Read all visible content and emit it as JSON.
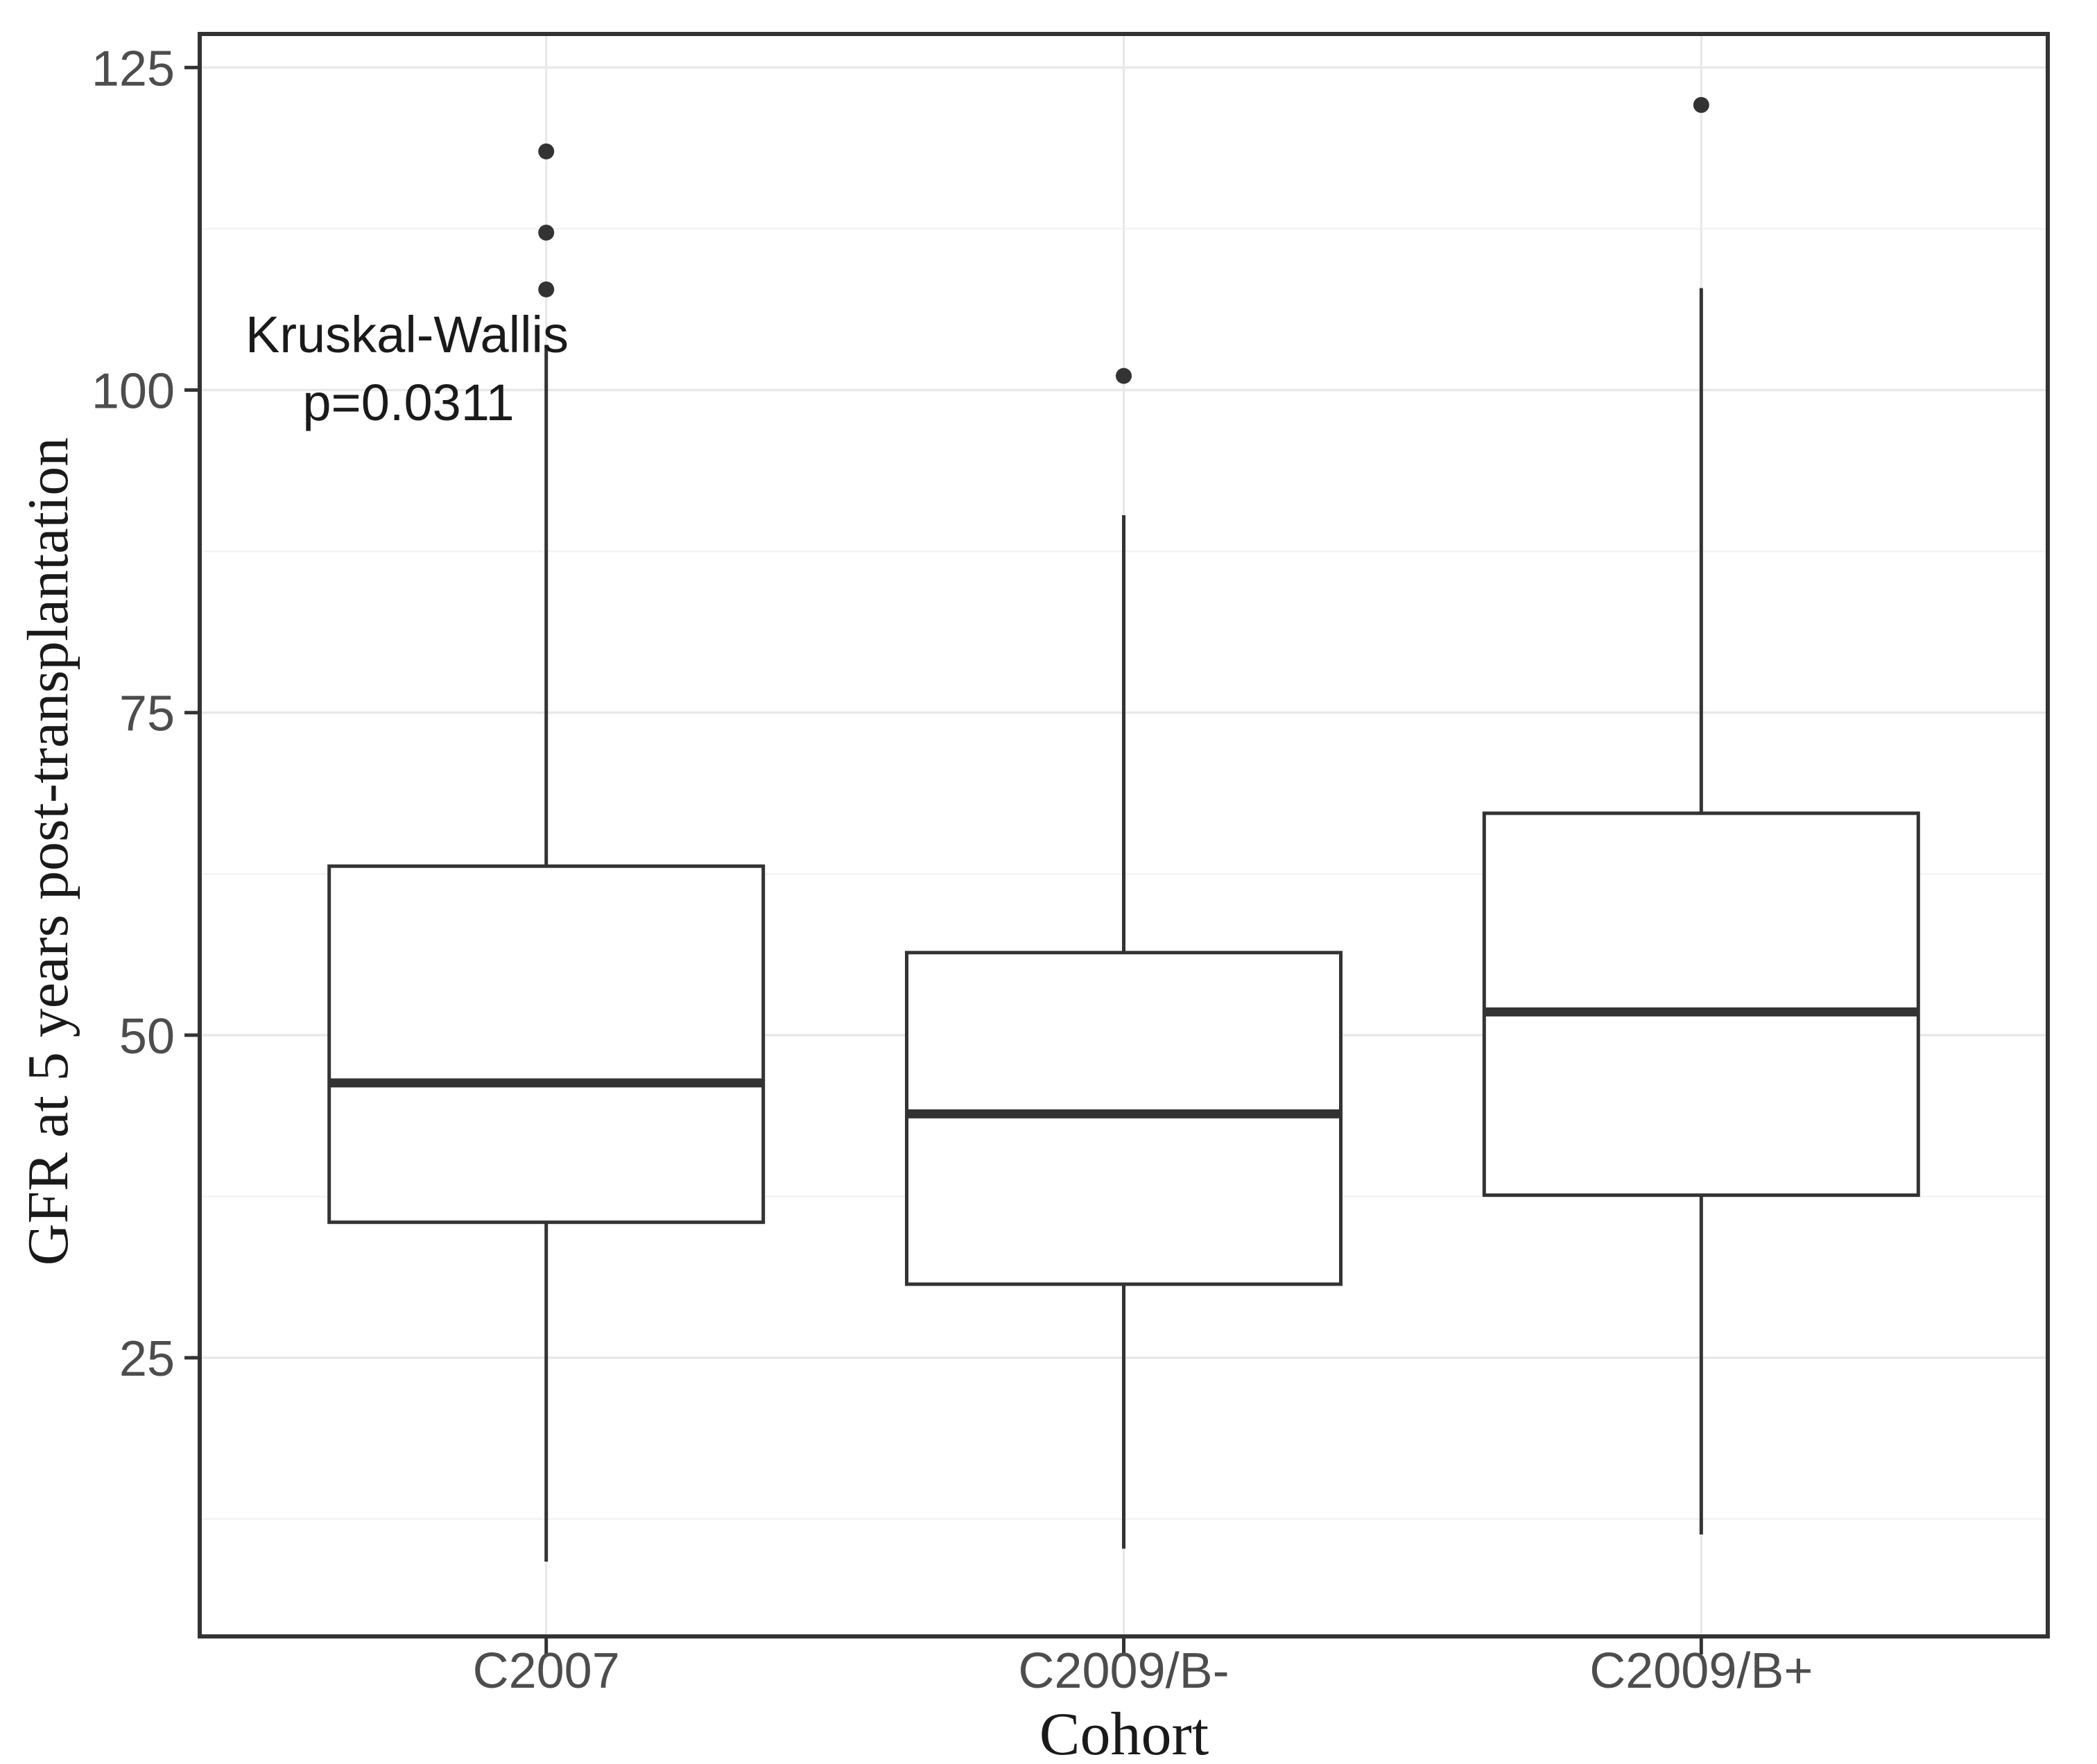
{
  "chart_data": {
    "type": "boxplot",
    "title": "",
    "xlabel": "Cohort",
    "ylabel": "GFR at 5 years post-transplantation",
    "categories": [
      "C2007",
      "C2009/B-",
      "C2009/B+"
    ],
    "series": [
      {
        "category": "C2007",
        "whisker_low": 9.2,
        "q1": 35.5,
        "median": 46.3,
        "q3": 63.1,
        "whisker_high": 103.5,
        "outliers": [
          107.8,
          112.2,
          118.5
        ]
      },
      {
        "category": "C2009/B-",
        "whisker_low": 10.2,
        "q1": 30.7,
        "median": 43.9,
        "q3": 56.4,
        "whisker_high": 90.3,
        "outliers": [
          101.1
        ]
      },
      {
        "category": "C2009/B+",
        "whisker_low": 11.3,
        "q1": 37.6,
        "median": 51.8,
        "q3": 67.2,
        "whisker_high": 107.9,
        "outliers": [
          122.1
        ]
      }
    ],
    "y_ticks": [
      25,
      50,
      75,
      100,
      125
    ],
    "y_minor_ticks": [
      12.5,
      37.5,
      62.5,
      87.5,
      112.5
    ],
    "ylim": [
      3.4,
      127.6
    ],
    "grid": {
      "major_horizontal": true,
      "minor_horizontal": true,
      "vertical_at_categories": true
    },
    "legend": "none",
    "annotation": {
      "line1": "Kruskal-Wallis",
      "line2": "p=0.0311"
    }
  },
  "style": {
    "background_color": "#ffffff",
    "panel_border_color": "#333333",
    "box_stroke_color": "#333333",
    "box_fill_color": "#ffffff",
    "median_color": "#333333",
    "whisker_color": "#333333",
    "outlier_color": "#333333",
    "major_gridline_color": "#e8e8e8",
    "minor_gridline_color": "#f3f3f3",
    "tick_mark_color": "#333333",
    "tick_label_color": "#4d4d4d",
    "axis_title_color": "#1a1a1a",
    "annotation_color": "#1a1a1a"
  }
}
